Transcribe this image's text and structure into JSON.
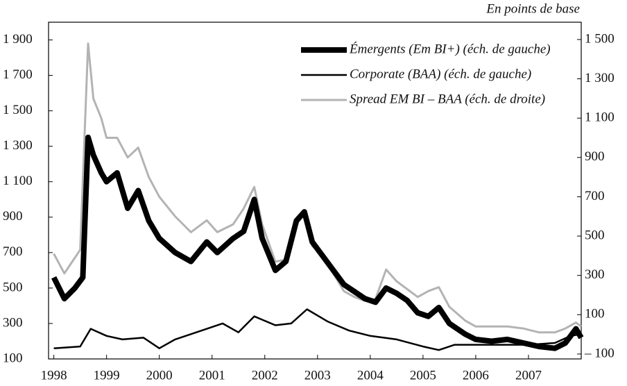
{
  "chart_data": {
    "type": "line",
    "subtitle": "En points de base",
    "xlim": [
      1997.9,
      2008.0
    ],
    "xticks": [
      1998,
      1999,
      2000,
      2001,
      2002,
      2003,
      2004,
      2005,
      2006,
      2007
    ],
    "ylim": [
      100,
      2000
    ],
    "yticks": [
      {
        "value": 100,
        "label": "100"
      },
      {
        "value": 300,
        "label": "300"
      },
      {
        "value": 500,
        "label": "500"
      },
      {
        "value": 700,
        "label": "700"
      },
      {
        "value": 900,
        "label": "900"
      },
      {
        "value": 1100,
        "label": "1 100"
      },
      {
        "value": 1300,
        "label": "1 300"
      },
      {
        "value": 1500,
        "label": "1 500"
      },
      {
        "value": 1700,
        "label": "1 700"
      },
      {
        "value": 1900,
        "label": "1 900"
      }
    ],
    "y2lim": [
      -125,
      1588
    ],
    "y2ticks": [
      {
        "value": -100,
        "label": "– 100"
      },
      100,
      300,
      500,
      700,
      900,
      {
        "value": 1100,
        "label": "1 100"
      },
      {
        "value": 1300,
        "label": "1 300"
      },
      {
        "value": 1500,
        "label": "1 500"
      }
    ],
    "legend": "top-right",
    "series": [
      {
        "name": "Émergents (Em BI+) (éch. de gauche)",
        "color": "#000000",
        "width": 8,
        "axis": "y",
        "x": [
          1998.0,
          1998.2,
          1998.4,
          1998.55,
          1998.65,
          1998.75,
          1998.9,
          1999.0,
          1999.2,
          1999.4,
          1999.6,
          1999.8,
          2000.0,
          2000.3,
          2000.6,
          2000.9,
          2001.1,
          2001.4,
          2001.6,
          2001.8,
          2001.95,
          2002.2,
          2002.4,
          2002.6,
          2002.75,
          2002.9,
          2003.1,
          2003.3,
          2003.5,
          2003.7,
          2003.9,
          2004.1,
          2004.3,
          2004.5,
          2004.7,
          2004.9,
          2005.1,
          2005.3,
          2005.5,
          2005.8,
          2006.0,
          2006.3,
          2006.6,
          2006.9,
          2007.2,
          2007.5,
          2007.7,
          2007.9,
          2008.0
        ],
        "values": [
          560,
          440,
          500,
          560,
          1350,
          1250,
          1150,
          1100,
          1150,
          950,
          1050,
          880,
          780,
          700,
          650,
          760,
          700,
          780,
          820,
          1000,
          780,
          600,
          650,
          880,
          930,
          760,
          680,
          600,
          520,
          480,
          440,
          420,
          500,
          470,
          430,
          360,
          340,
          390,
          300,
          240,
          210,
          200,
          210,
          190,
          170,
          160,
          190,
          270,
          220
        ]
      },
      {
        "name": "Corporate (BAA) (éch. de gauche)",
        "color": "#000000",
        "width": 2.5,
        "axis": "y",
        "x": [
          1998.0,
          1998.5,
          1998.7,
          1999.0,
          1999.3,
          1999.7,
          2000.0,
          2000.3,
          2000.8,
          2001.2,
          2001.5,
          2001.8,
          2002.2,
          2002.5,
          2002.8,
          2003.2,
          2003.6,
          2004.0,
          2004.5,
          2005.0,
          2005.3,
          2005.6,
          2006.0,
          2006.5,
          2007.0,
          2007.5,
          2007.8,
          2008.0
        ],
        "values": [
          160,
          170,
          270,
          230,
          210,
          220,
          160,
          210,
          260,
          300,
          250,
          340,
          290,
          300,
          380,
          310,
          260,
          230,
          210,
          170,
          150,
          180,
          180,
          180,
          180,
          190,
          230,
          240
        ]
      },
      {
        "name": "Spread EM BI – BAA (éch. de droite)",
        "color": "#b3b3b3",
        "width": 3,
        "axis": "y2",
        "x": [
          1998.0,
          1998.2,
          1998.5,
          1998.65,
          1998.75,
          1998.9,
          1999.0,
          1999.2,
          1999.4,
          1999.6,
          1999.8,
          2000.0,
          2000.3,
          2000.6,
          2000.9,
          2001.1,
          2001.4,
          2001.6,
          2001.8,
          2001.95,
          2002.2,
          2002.4,
          2002.6,
          2002.75,
          2002.9,
          2003.1,
          2003.3,
          2003.5,
          2003.7,
          2003.9,
          2004.1,
          2004.3,
          2004.5,
          2004.7,
          2004.9,
          2005.1,
          2005.3,
          2005.5,
          2005.8,
          2006.0,
          2006.3,
          2006.6,
          2006.9,
          2007.2,
          2007.5,
          2007.7,
          2007.9,
          2008.0
        ],
        "values": [
          410,
          310,
          430,
          1480,
          1200,
          1100,
          1000,
          1000,
          900,
          950,
          800,
          700,
          600,
          520,
          580,
          520,
          560,
          640,
          750,
          560,
          370,
          380,
          560,
          610,
          450,
          400,
          310,
          220,
          190,
          170,
          180,
          330,
          270,
          230,
          190,
          220,
          240,
          140,
          70,
          40,
          40,
          40,
          30,
          10,
          10,
          30,
          60,
          40
        ]
      }
    ]
  }
}
